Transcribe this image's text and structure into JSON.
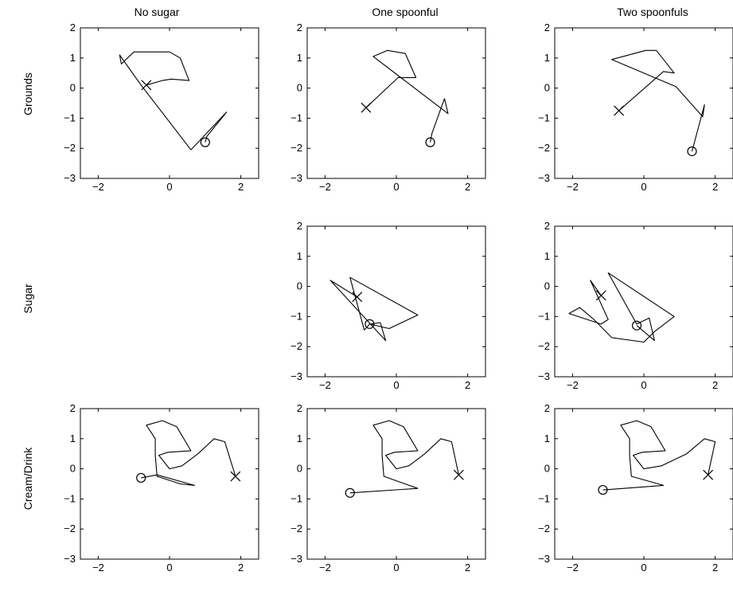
{
  "chart_data": {
    "type": "line",
    "layout": "3x3 grid",
    "column_titles": [
      "No sugar",
      "One spoonful",
      "Two spoonfuls"
    ],
    "row_labels": [
      "Grounds",
      "Sugar",
      "Cream/Drink"
    ],
    "xlim": [
      -2.5,
      2.5
    ],
    "ylim": [
      -3,
      2
    ],
    "xticks": [
      -2,
      0,
      2
    ],
    "yticks": [
      2,
      1,
      0,
      -1,
      -2,
      -3
    ],
    "grid": false,
    "marker_legend": {
      "x_mark": "start",
      "circle_mark": "end"
    },
    "panels": [
      {
        "row": 0,
        "col": 0,
        "points": [
          [
            -0.65,
            0.1
          ],
          [
            -0.2,
            0.25
          ],
          [
            0.05,
            0.3
          ],
          [
            0.55,
            0.25
          ],
          [
            0.3,
            1.0
          ],
          [
            0.0,
            1.2
          ],
          [
            -1.0,
            1.2
          ],
          [
            -1.35,
            0.8
          ],
          [
            -1.4,
            1.1
          ],
          [
            -0.8,
            0.1
          ],
          [
            0.6,
            -2.05
          ],
          [
            1.6,
            -0.8
          ],
          [
            1.05,
            -1.6
          ],
          [
            1.0,
            -1.8
          ]
        ],
        "start": [
          -0.65,
          0.1
        ],
        "end": [
          1.0,
          -1.8
        ]
      },
      {
        "row": 0,
        "col": 1,
        "points": [
          [
            -0.85,
            -0.65
          ],
          [
            0.05,
            0.35
          ],
          [
            0.55,
            0.35
          ],
          [
            0.25,
            1.15
          ],
          [
            -0.25,
            1.25
          ],
          [
            -0.65,
            1.05
          ],
          [
            1.45,
            -0.85
          ],
          [
            1.35,
            -0.35
          ],
          [
            1.0,
            -1.5
          ],
          [
            0.95,
            -1.8
          ]
        ],
        "start": [
          -0.85,
          -0.65
        ],
        "end": [
          0.95,
          -1.8
        ]
      },
      {
        "row": 0,
        "col": 2,
        "points": [
          [
            -0.7,
            -0.75
          ],
          [
            0.55,
            0.55
          ],
          [
            0.85,
            0.5
          ],
          [
            0.35,
            1.25
          ],
          [
            0.05,
            1.25
          ],
          [
            -0.9,
            0.95
          ],
          [
            0.9,
            0.05
          ],
          [
            1.65,
            -0.95
          ],
          [
            1.7,
            -0.55
          ],
          [
            1.35,
            -2.1
          ]
        ],
        "start": [
          -0.7,
          -0.75
        ],
        "end": [
          1.35,
          -2.1
        ]
      },
      {
        "row": 1,
        "col": 1,
        "points": [
          [
            -1.1,
            -0.35
          ],
          [
            -1.85,
            0.2
          ],
          [
            -0.3,
            -1.8
          ],
          [
            -0.45,
            -1.2
          ],
          [
            -0.75,
            -1.25
          ],
          [
            -0.9,
            -1.45
          ],
          [
            -1.3,
            0.3
          ],
          [
            0.6,
            -0.95
          ],
          [
            -0.2,
            -1.4
          ],
          [
            -0.75,
            -1.25
          ]
        ],
        "start": [
          -1.1,
          -0.35
        ],
        "end": [
          -0.75,
          -1.25
        ]
      },
      {
        "row": 1,
        "col": 2,
        "points": [
          [
            -1.2,
            -0.3
          ],
          [
            -1.5,
            0.2
          ],
          [
            -1.0,
            -1.1
          ],
          [
            -1.2,
            -1.25
          ],
          [
            -2.1,
            -0.9
          ],
          [
            -1.8,
            -0.7
          ],
          [
            -1.4,
            -1.1
          ],
          [
            -0.9,
            -1.7
          ],
          [
            0.0,
            -1.85
          ],
          [
            0.3,
            -1.5
          ],
          [
            0.85,
            -1.0
          ],
          [
            -1.0,
            0.45
          ],
          [
            -0.2,
            -1.25
          ],
          [
            0.15,
            -1.05
          ],
          [
            0.3,
            -1.8
          ],
          [
            -0.2,
            -1.3
          ]
        ],
        "start": [
          -1.2,
          -0.3
        ],
        "end": [
          -0.2,
          -1.3
        ]
      },
      {
        "row": 2,
        "col": 0,
        "points": [
          [
            1.85,
            -0.25
          ],
          [
            1.55,
            0.9
          ],
          [
            1.25,
            1.0
          ],
          [
            0.8,
            0.5
          ],
          [
            0.35,
            0.1
          ],
          [
            0.0,
            0.0
          ],
          [
            -0.3,
            0.45
          ],
          [
            -0.05,
            0.55
          ],
          [
            0.6,
            0.6
          ],
          [
            0.2,
            1.4
          ],
          [
            -0.2,
            1.6
          ],
          [
            -0.65,
            1.45
          ],
          [
            -0.4,
            1.0
          ],
          [
            -0.4,
            0.45
          ],
          [
            -0.35,
            -0.25
          ],
          [
            0.3,
            -0.5
          ],
          [
            0.7,
            -0.55
          ],
          [
            -0.35,
            -0.2
          ],
          [
            -0.8,
            -0.3
          ]
        ],
        "start": [
          1.85,
          -0.25
        ],
        "end": [
          -0.8,
          -0.3
        ]
      },
      {
        "row": 2,
        "col": 1,
        "points": [
          [
            1.75,
            -0.2
          ],
          [
            1.55,
            0.9
          ],
          [
            1.25,
            1.0
          ],
          [
            0.8,
            0.5
          ],
          [
            0.35,
            0.1
          ],
          [
            0.0,
            0.0
          ],
          [
            -0.3,
            0.45
          ],
          [
            -0.05,
            0.55
          ],
          [
            0.6,
            0.6
          ],
          [
            0.2,
            1.4
          ],
          [
            -0.2,
            1.6
          ],
          [
            -0.65,
            1.45
          ],
          [
            -0.4,
            1.0
          ],
          [
            -0.4,
            0.45
          ],
          [
            -0.35,
            -0.25
          ],
          [
            0.6,
            -0.65
          ],
          [
            -1.3,
            -0.8
          ]
        ],
        "start": [
          1.75,
          -0.2
        ],
        "end": [
          -1.3,
          -0.8
        ]
      },
      {
        "row": 2,
        "col": 2,
        "points": [
          [
            1.8,
            -0.2
          ],
          [
            2.0,
            0.9
          ],
          [
            1.7,
            1.0
          ],
          [
            1.2,
            0.5
          ],
          [
            0.5,
            0.1
          ],
          [
            0.0,
            0.0
          ],
          [
            -0.3,
            0.45
          ],
          [
            -0.05,
            0.55
          ],
          [
            0.6,
            0.6
          ],
          [
            0.2,
            1.4
          ],
          [
            -0.2,
            1.6
          ],
          [
            -0.65,
            1.45
          ],
          [
            -0.4,
            1.0
          ],
          [
            -0.4,
            0.45
          ],
          [
            -0.35,
            -0.25
          ],
          [
            0.55,
            -0.55
          ],
          [
            -1.15,
            -0.7
          ]
        ],
        "start": [
          1.8,
          -0.2
        ],
        "end": [
          -1.15,
          -0.7
        ]
      }
    ]
  }
}
